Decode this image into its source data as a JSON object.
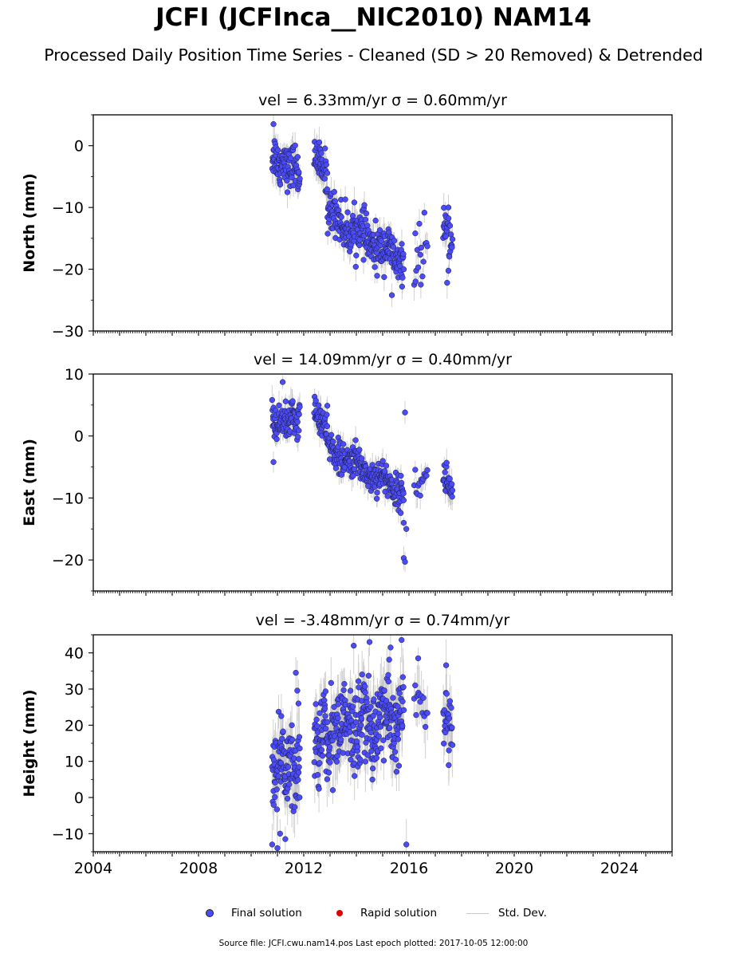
{
  "title": "JCFI (JCFInca__NIC2010) NAM14",
  "subtitle": "Processed Daily Position Time Series - Cleaned (SD > 20 Removed) & Detrended",
  "legend": {
    "final": "Final solution",
    "rapid": "Rapid solution",
    "std": "Std. Dev.",
    "final_color": "#4b4bf7",
    "rapid_color": "#e00000",
    "std_color": "#c8c8c8"
  },
  "footer": "Source file: JCFI.cwu.nam14.pos  Last epoch plotted: 2017-10-05 12:00:00",
  "chart_data": [
    {
      "type": "scatter",
      "title": "vel = 6.33mm/yr   σ = 0.60mm/yr",
      "ylabel": "North (mm)",
      "xlim": [
        2004,
        2026
      ],
      "ylim": [
        -30,
        5
      ],
      "yticks": [
        0,
        -10,
        -20,
        -30
      ],
      "ytick_labels": [
        "0",
        "−10",
        "−20",
        "−30"
      ],
      "xticks": [
        2004,
        2008,
        2012,
        2016,
        2020,
        2024
      ],
      "xtick_labels": [
        "",
        "",
        "",
        "",
        "",
        ""
      ],
      "segments": [
        {
          "x0": 2010.8,
          "x1": 2011.85,
          "y0": -2,
          "y1": -4,
          "spread": 2.2,
          "n": 95
        },
        {
          "x0": 2012.4,
          "x1": 2012.9,
          "y0": -1.5,
          "y1": -5,
          "spread": 2.0,
          "n": 45
        },
        {
          "x0": 2012.9,
          "x1": 2015.8,
          "y0": -11,
          "y1": -19,
          "spread": 2.3,
          "n": 250
        },
        {
          "x0": 2016.2,
          "x1": 2016.7,
          "y0": -18,
          "y1": -15,
          "spread": 2.5,
          "n": 14
        },
        {
          "x0": 2017.3,
          "x1": 2017.65,
          "y0": -14,
          "y1": -16,
          "spread": 2.4,
          "n": 28
        }
      ],
      "outliers": [
        [
          2010.85,
          3.5
        ],
        [
          2016.25,
          -22
        ],
        [
          2016.45,
          -22.5
        ],
        [
          2017.45,
          -22.2
        ],
        [
          2015.35,
          -24.2
        ],
        [
          2017.5,
          -10
        ]
      ],
      "sd": 1.5,
      "series": [
        {
          "name": "Final solution",
          "color": "#4b4bf7"
        }
      ]
    },
    {
      "type": "scatter",
      "title": "vel = 14.09mm/yr   σ = 0.40mm/yr",
      "ylabel": "East (mm)",
      "xlim": [
        2004,
        2026
      ],
      "ylim": [
        -25,
        10
      ],
      "yticks": [
        10,
        0,
        -10,
        -20
      ],
      "ytick_labels": [
        "10",
        "0",
        "−10",
        "−20"
      ],
      "xticks": [
        2004,
        2008,
        2012,
        2016,
        2020,
        2024
      ],
      "xtick_labels": [
        "",
        "",
        "",
        "",
        "",
        ""
      ],
      "segments": [
        {
          "x0": 2010.8,
          "x1": 2011.85,
          "y0": 2,
          "y1": 3,
          "spread": 1.8,
          "n": 95
        },
        {
          "x0": 2012.4,
          "x1": 2012.9,
          "y0": 4,
          "y1": 1,
          "spread": 1.6,
          "n": 45
        },
        {
          "x0": 2012.9,
          "x1": 2015.8,
          "y0": -2,
          "y1": -9,
          "spread": 1.7,
          "n": 250
        },
        {
          "x0": 2016.2,
          "x1": 2016.7,
          "y0": -8,
          "y1": -7,
          "spread": 1.5,
          "n": 14
        },
        {
          "x0": 2017.3,
          "x1": 2017.65,
          "y0": -6,
          "y1": -9,
          "spread": 2.0,
          "n": 28
        }
      ],
      "outliers": [
        [
          2011.2,
          8.7
        ],
        [
          2015.85,
          3.8
        ],
        [
          2015.8,
          -19.7
        ],
        [
          2015.85,
          -20.3
        ],
        [
          2015.9,
          -15
        ],
        [
          2015.8,
          -14
        ],
        [
          2010.85,
          -4.2
        ]
      ],
      "sd": 1.4,
      "series": [
        {
          "name": "Final solution",
          "color": "#4b4bf7"
        }
      ]
    },
    {
      "type": "scatter",
      "title": "vel = -3.48mm/yr   σ = 0.74mm/yr",
      "ylabel": "Height (mm)",
      "xlim": [
        2004,
        2026
      ],
      "ylim": [
        -15,
        45
      ],
      "yticks": [
        40,
        30,
        20,
        10,
        0,
        -10
      ],
      "ytick_labels": [
        "40",
        "30",
        "20",
        "10",
        "0",
        "−10"
      ],
      "xticks": [
        2004,
        2008,
        2012,
        2016,
        2020,
        2024
      ],
      "xtick_labels": [
        "2004",
        "2008",
        "2012",
        "2016",
        "2020",
        "2024"
      ],
      "segments": [
        {
          "x0": 2010.8,
          "x1": 2011.85,
          "y0": 10,
          "y1": 10,
          "spread": 8,
          "n": 110
        },
        {
          "x0": 2012.4,
          "x1": 2013.5,
          "y0": 15,
          "y1": 20,
          "spread": 8,
          "n": 110
        },
        {
          "x0": 2013.5,
          "x1": 2015.8,
          "y0": 20,
          "y1": 22,
          "spread": 8,
          "n": 230
        },
        {
          "x0": 2016.2,
          "x1": 2016.7,
          "y0": 28,
          "y1": 25,
          "spread": 5,
          "n": 14
        },
        {
          "x0": 2017.3,
          "x1": 2017.65,
          "y0": 20,
          "y1": 22,
          "spread": 7,
          "n": 28
        }
      ],
      "outliers": [
        [
          2010.8,
          -13
        ],
        [
          2011.0,
          -14
        ],
        [
          2011.3,
          -11.5
        ],
        [
          2015.9,
          -13
        ],
        [
          2014.5,
          43
        ],
        [
          2015.3,
          41.5
        ],
        [
          2013.9,
          42
        ],
        [
          2016.35,
          38.5
        ],
        [
          2011.7,
          34.5
        ],
        [
          2011.8,
          26
        ],
        [
          2011.1,
          -10
        ]
      ],
      "sd": 5,
      "series": [
        {
          "name": "Final solution",
          "color": "#4b4bf7"
        }
      ]
    }
  ]
}
